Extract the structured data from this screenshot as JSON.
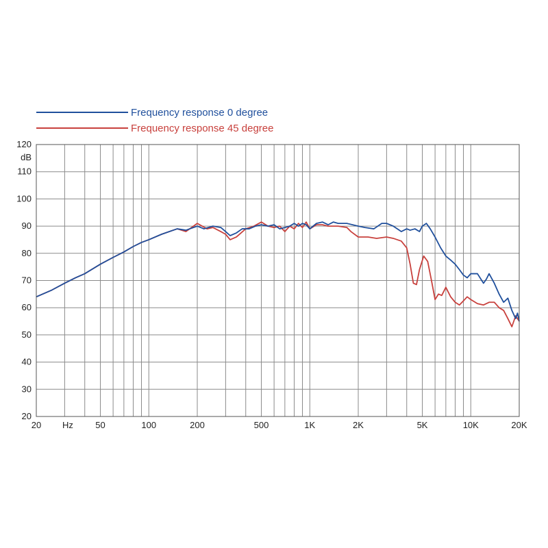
{
  "chart_data": {
    "type": "line",
    "x_scale": "log",
    "xlim": [
      20,
      20000
    ],
    "ylim": [
      20,
      120
    ],
    "grid": true,
    "legend_position": "top-left",
    "ylabel": "dB",
    "xlabel": "Hz",
    "x_tick_labels": [
      {
        "value": 20,
        "label": "20"
      },
      {
        "value": 50,
        "label": "50"
      },
      {
        "value": 100,
        "label": "100"
      },
      {
        "value": 200,
        "label": "200"
      },
      {
        "value": 500,
        "label": "500"
      },
      {
        "value": 1000,
        "label": "1K"
      },
      {
        "value": 2000,
        "label": "2K"
      },
      {
        "value": 5000,
        "label": "5K"
      },
      {
        "value": 10000,
        "label": "10K"
      },
      {
        "value": 20000,
        "label": "20K"
      }
    ],
    "x_grid": [
      30,
      40,
      50,
      60,
      70,
      80,
      90,
      100,
      200,
      300,
      400,
      500,
      600,
      700,
      800,
      900,
      1000,
      2000,
      3000,
      4000,
      5000,
      6000,
      7000,
      8000,
      9000,
      10000
    ],
    "y_ticks": [
      20,
      30,
      40,
      50,
      60,
      70,
      80,
      90,
      100,
      110,
      120
    ],
    "series": [
      {
        "name": "Frequency response 0 degree",
        "color": "#1f4f9c",
        "points": [
          [
            20,
            64
          ],
          [
            25,
            66.5
          ],
          [
            30,
            69
          ],
          [
            35,
            71
          ],
          [
            40,
            72.5
          ],
          [
            50,
            76
          ],
          [
            60,
            78.5
          ],
          [
            70,
            80.5
          ],
          [
            80,
            82.5
          ],
          [
            90,
            84
          ],
          [
            100,
            85
          ],
          [
            120,
            87
          ],
          [
            150,
            89
          ],
          [
            170,
            88.5
          ],
          [
            200,
            90
          ],
          [
            220,
            89
          ],
          [
            250,
            90
          ],
          [
            280,
            89.5
          ],
          [
            300,
            88
          ],
          [
            320,
            86.5
          ],
          [
            350,
            87.5
          ],
          [
            380,
            89
          ],
          [
            420,
            89
          ],
          [
            460,
            90
          ],
          [
            500,
            90.5
          ],
          [
            550,
            90
          ],
          [
            600,
            90.5
          ],
          [
            650,
            89
          ],
          [
            700,
            89.5
          ],
          [
            750,
            90
          ],
          [
            800,
            91
          ],
          [
            850,
            90
          ],
          [
            900,
            91
          ],
          [
            950,
            90.5
          ],
          [
            1000,
            89
          ],
          [
            1100,
            91
          ],
          [
            1200,
            91.5
          ],
          [
            1300,
            90.5
          ],
          [
            1400,
            91.5
          ],
          [
            1500,
            91
          ],
          [
            1700,
            91
          ],
          [
            2000,
            90
          ],
          [
            2200,
            89.5
          ],
          [
            2500,
            89
          ],
          [
            2800,
            91
          ],
          [
            3000,
            91
          ],
          [
            3300,
            90
          ],
          [
            3700,
            88
          ],
          [
            4000,
            89
          ],
          [
            4200,
            88.5
          ],
          [
            4500,
            89
          ],
          [
            4800,
            88
          ],
          [
            5000,
            90
          ],
          [
            5300,
            91
          ],
          [
            5600,
            89
          ],
          [
            6000,
            86
          ],
          [
            6500,
            82
          ],
          [
            7000,
            79
          ],
          [
            7500,
            77.5
          ],
          [
            8000,
            76
          ],
          [
            8500,
            74
          ],
          [
            9000,
            72
          ],
          [
            9500,
            71
          ],
          [
            10000,
            72.5
          ],
          [
            11000,
            72.5
          ],
          [
            12000,
            69
          ],
          [
            12500,
            70.5
          ],
          [
            13000,
            72.5
          ],
          [
            14000,
            69
          ],
          [
            15000,
            65
          ],
          [
            16000,
            62
          ],
          [
            17000,
            63.5
          ],
          [
            18000,
            59
          ],
          [
            19000,
            56
          ],
          [
            19500,
            58
          ],
          [
            20000,
            55
          ]
        ]
      },
      {
        "name": "Frequency response 45 degree",
        "color": "#c8403c",
        "points": [
          [
            20,
            64
          ],
          [
            25,
            66.5
          ],
          [
            30,
            69
          ],
          [
            35,
            71
          ],
          [
            40,
            72.5
          ],
          [
            50,
            76
          ],
          [
            60,
            78.5
          ],
          [
            70,
            80.5
          ],
          [
            80,
            82.5
          ],
          [
            90,
            84
          ],
          [
            100,
            85
          ],
          [
            120,
            87
          ],
          [
            150,
            89
          ],
          [
            170,
            88
          ],
          [
            200,
            91
          ],
          [
            230,
            89
          ],
          [
            250,
            89.5
          ],
          [
            280,
            88
          ],
          [
            300,
            87
          ],
          [
            320,
            85
          ],
          [
            350,
            86
          ],
          [
            400,
            89
          ],
          [
            450,
            90
          ],
          [
            500,
            91.5
          ],
          [
            550,
            90
          ],
          [
            600,
            89.5
          ],
          [
            650,
            90
          ],
          [
            700,
            88
          ],
          [
            750,
            90
          ],
          [
            800,
            89
          ],
          [
            850,
            91
          ],
          [
            900,
            89.5
          ],
          [
            950,
            91.5
          ],
          [
            1000,
            89
          ],
          [
            1100,
            90.5
          ],
          [
            1200,
            90.5
          ],
          [
            1300,
            90
          ],
          [
            1500,
            90
          ],
          [
            1700,
            89.5
          ],
          [
            1800,
            88
          ],
          [
            2000,
            86
          ],
          [
            2300,
            86
          ],
          [
            2600,
            85.5
          ],
          [
            3000,
            86
          ],
          [
            3300,
            85.5
          ],
          [
            3700,
            84.5
          ],
          [
            4000,
            82
          ],
          [
            4200,
            76
          ],
          [
            4400,
            69
          ],
          [
            4600,
            68.5
          ],
          [
            4800,
            74
          ],
          [
            5100,
            79
          ],
          [
            5400,
            77
          ],
          [
            5700,
            70
          ],
          [
            6000,
            63
          ],
          [
            6300,
            65
          ],
          [
            6600,
            64.5
          ],
          [
            7000,
            67.5
          ],
          [
            7500,
            64
          ],
          [
            8000,
            62
          ],
          [
            8500,
            61
          ],
          [
            9000,
            62.5
          ],
          [
            9500,
            64
          ],
          [
            10000,
            63
          ],
          [
            11000,
            61.5
          ],
          [
            12000,
            61
          ],
          [
            13000,
            62
          ],
          [
            14000,
            62
          ],
          [
            15000,
            60
          ],
          [
            16000,
            59
          ],
          [
            17000,
            56
          ],
          [
            18000,
            53
          ],
          [
            19000,
            57
          ],
          [
            20000,
            55
          ]
        ]
      }
    ]
  }
}
